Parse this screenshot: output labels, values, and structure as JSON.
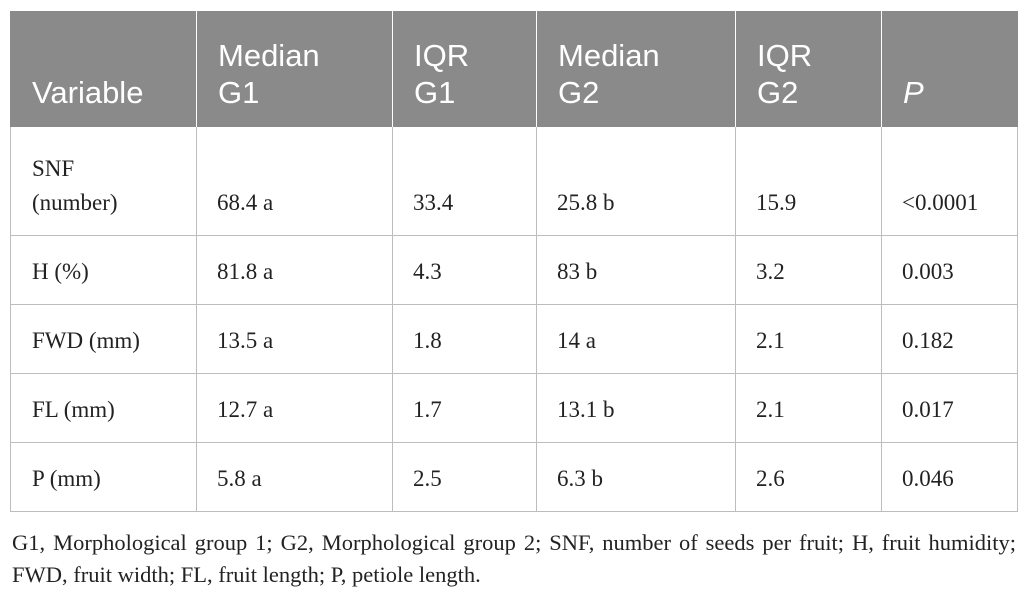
{
  "table": {
    "headers": [
      {
        "text": "Variable",
        "italic": false
      },
      {
        "text": "Median\nG1",
        "italic": false
      },
      {
        "text": "IQR\nG1",
        "italic": false
      },
      {
        "text": "Median\nG2",
        "italic": false
      },
      {
        "text": "IQR\nG2",
        "italic": false
      },
      {
        "text": "P",
        "italic": true
      }
    ],
    "rows": [
      [
        "SNF\n(number)",
        "68.4 a",
        "33.4",
        "25.8 b",
        "15.9",
        "<0.0001"
      ],
      [
        "H (%)",
        "81.8 a",
        "4.3",
        "83 b",
        "3.2",
        "0.003"
      ],
      [
        "FWD (mm)",
        "13.5 a",
        "1.8",
        "14 a",
        "2.1",
        "0.182"
      ],
      [
        "FL (mm)",
        "12.7 a",
        "1.7",
        "13.1 b",
        "2.1",
        "0.017"
      ],
      [
        "P (mm)",
        "5.8 a",
        "2.5",
        "6.3 b",
        "2.6",
        "0.046"
      ]
    ]
  },
  "footnote": "G1, Morphological group 1; G2, Morphological group 2; SNF, number of seeds per fruit; H, fruit humidity; FWD, fruit width; FL, fruit length; P, petiole length.",
  "colors": {
    "header_bg": "#8a8a8a",
    "header_text": "#ffffff",
    "grid": "#bdbdbd",
    "body_text": "#222222"
  }
}
